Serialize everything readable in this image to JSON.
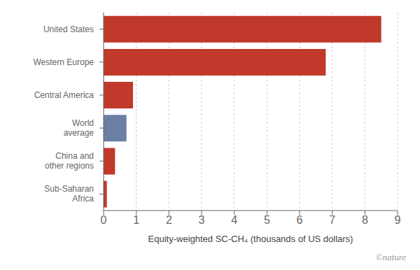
{
  "chart_data": {
    "type": "bar",
    "orientation": "horizontal",
    "categories": [
      "Sub-Saharan\nAfrica",
      "China and\nother regions",
      "World\naverage",
      "Central America",
      "Western Europe",
      "United States"
    ],
    "values": [
      0.1,
      0.35,
      0.7,
      0.9,
      6.8,
      8.5
    ],
    "colors": [
      "#c0392b",
      "#c0392b",
      "#6b7fa3",
      "#c0392b",
      "#c0392b",
      "#c0392b"
    ],
    "xlabel": "Equity-weighted SC-CH₄ (thousands of US dollars)",
    "xlim": [
      0,
      9
    ],
    "xticks": [
      0,
      1,
      2,
      3,
      4,
      5,
      6,
      7,
      8,
      9
    ],
    "grid": true,
    "annotations": [
      "©nature"
    ]
  }
}
